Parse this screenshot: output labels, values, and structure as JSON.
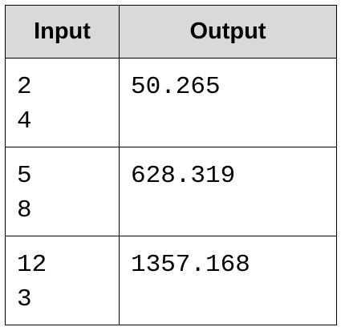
{
  "table": {
    "headers": [
      "Input",
      "Output"
    ],
    "rows": [
      {
        "input": [
          "2",
          "4"
        ],
        "output": "50.265"
      },
      {
        "input": [
          "5",
          "8"
        ],
        "output": "628.319"
      },
      {
        "input": [
          "12",
          "3"
        ],
        "output": "1357.168"
      }
    ]
  },
  "colors": {
    "header_background": "#d9d9d9",
    "border": "#000000"
  }
}
